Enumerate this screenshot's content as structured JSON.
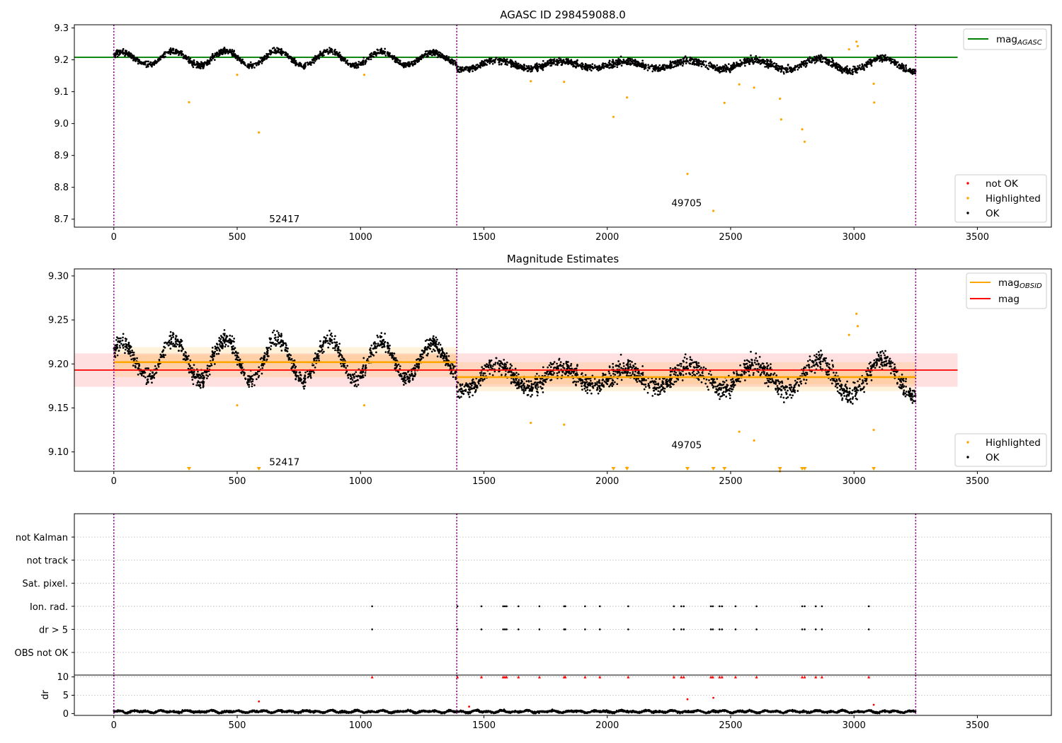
{
  "chart_data": [
    {
      "type": "scatter",
      "title": "AGASC ID 298459088.0",
      "xlabel": "",
      "ylabel": "",
      "xlim": [
        -160,
        3800
      ],
      "ylim": [
        8.675,
        9.31
      ],
      "xticks": [
        0,
        500,
        1000,
        1500,
        2000,
        2500,
        3000,
        3500
      ],
      "yticks": [
        8.7,
        8.8,
        8.9,
        9.0,
        9.1,
        9.2,
        9.3
      ],
      "ytick_labels": [
        "8.7",
        "8.8",
        "8.9",
        "9.0",
        "9.1",
        "9.2",
        "9.3"
      ],
      "obs_boundaries": [
        0,
        1390,
        3250
      ],
      "obsid_labels": [
        {
          "text": "52417",
          "x": 630,
          "y": 8.69
        },
        {
          "text": "49705",
          "x": 2260,
          "y": 8.74
        }
      ],
      "mag_agasc": 9.208,
      "legend_top": [
        {
          "label": "mag",
          "sub": "AGASC",
          "color": "#008000"
        }
      ],
      "legend_bottom": [
        {
          "label": "not OK",
          "color": "#ff0000"
        },
        {
          "label": "Highlighted",
          "color": "#ffa500"
        },
        {
          "label": "OK",
          "color": "#000000"
        }
      ],
      "ok_segments": [
        {
          "x0": 0,
          "x1": 1390,
          "mean": 9.205,
          "amp": 0.022,
          "period": 210,
          "noise": 0.009
        },
        {
          "x0": 1390,
          "x1": 3250,
          "mean": 9.185,
          "amp": 0.02,
          "period": 260,
          "noise": 0.011
        }
      ],
      "highlighted": [
        {
          "x": 305,
          "y": 9.067
        },
        {
          "x": 500,
          "y": 9.153
        },
        {
          "x": 588,
          "y": 8.972
        },
        {
          "x": 1015,
          "y": 9.153
        },
        {
          "x": 1690,
          "y": 9.133
        },
        {
          "x": 1825,
          "y": 9.131
        },
        {
          "x": 2025,
          "y": 9.021
        },
        {
          "x": 2080,
          "y": 9.082
        },
        {
          "x": 2325,
          "y": 8.842
        },
        {
          "x": 2430,
          "y": 8.726
        },
        {
          "x": 2475,
          "y": 9.065
        },
        {
          "x": 2535,
          "y": 9.123
        },
        {
          "x": 2595,
          "y": 9.113
        },
        {
          "x": 2700,
          "y": 9.078
        },
        {
          "x": 2705,
          "y": 9.013
        },
        {
          "x": 2790,
          "y": 8.982
        },
        {
          "x": 2800,
          "y": 8.943
        },
        {
          "x": 2980,
          "y": 9.233
        },
        {
          "x": 3010,
          "y": 9.257
        },
        {
          "x": 3015,
          "y": 9.243
        },
        {
          "x": 3080,
          "y": 9.125
        },
        {
          "x": 3082,
          "y": 9.066
        }
      ],
      "legend_positions": [
        "upper right",
        "lower right"
      ]
    },
    {
      "type": "scatter",
      "title": "Magnitude Estimates",
      "xlabel": "",
      "ylabel": "",
      "xlim": [
        -160,
        3800
      ],
      "ylim": [
        9.078,
        9.308
      ],
      "xticks": [
        0,
        500,
        1000,
        1500,
        2000,
        2500,
        3000,
        3500
      ],
      "yticks": [
        9.1,
        9.15,
        9.2,
        9.25,
        9.3
      ],
      "ytick_labels": [
        "9.10",
        "9.15",
        "9.20",
        "9.25",
        "9.30"
      ],
      "obs_boundaries": [
        0,
        1390,
        3250
      ],
      "obsid_labels": [
        {
          "text": "52417",
          "x": 630,
          "y": 9.085
        },
        {
          "text": "49705",
          "x": 2260,
          "y": 9.104
        }
      ],
      "mag": 9.193,
      "mag_band": [
        9.174,
        9.212
      ],
      "mag_band_xrange": [
        -160,
        3420
      ],
      "mag_obsid": [
        {
          "x0": 0,
          "x1": 1390,
          "value": 9.202,
          "band": [
            9.185,
            9.219
          ]
        },
        {
          "x0": 1390,
          "x1": 3250,
          "value": 9.185,
          "band": [
            9.169,
            9.202
          ]
        }
      ],
      "legend_top": [
        {
          "label": "mag",
          "sub": "OBSID",
          "color": "#ffa500"
        },
        {
          "label": "mag",
          "sub": "",
          "color": "#ff0000"
        }
      ],
      "legend_bottom": [
        {
          "label": "Highlighted",
          "color": "#ffa500"
        },
        {
          "label": "OK",
          "color": "#000000"
        }
      ],
      "offscale_markers_x": [
        305,
        588,
        2025,
        2080,
        2325,
        2430,
        2475,
        2700,
        2790,
        2800,
        3080
      ],
      "legend_positions": [
        "upper right",
        "lower right"
      ]
    },
    {
      "type": "scatter",
      "title": "",
      "xlabel": "",
      "ylabel": "",
      "xlim": [
        -160,
        3800
      ],
      "xticks": [
        0,
        500,
        1000,
        1500,
        2000,
        2500,
        3000,
        3500
      ],
      "flag_rows": [
        "not Kalman",
        "not track",
        "Sat. pixel.",
        "Ion. rad.",
        "dr > 5",
        "OBS not OK"
      ],
      "flagged_times": [
        1047,
        1393,
        1490,
        1578,
        1585,
        1592,
        1640,
        1725,
        1825,
        1830,
        1910,
        1970,
        2085,
        2270,
        2300,
        2310,
        2420,
        2428,
        2455,
        2465,
        2520,
        2605,
        2790,
        2800,
        2845,
        2870,
        3060
      ],
      "obs_boundaries": [
        0,
        1390,
        3250
      ]
    },
    {
      "type": "scatter",
      "title": "",
      "xlabel": "",
      "ylabel": "dr",
      "xlim": [
        -160,
        3800
      ],
      "ylim": [
        -0.5,
        10.5
      ],
      "xticks": [
        0,
        500,
        1000,
        1500,
        2000,
        2500,
        3000,
        3500
      ],
      "yticks": [
        0,
        5,
        10
      ],
      "clipped_dr_value": 10,
      "outliers": [
        {
          "x": 588,
          "y": 3.3
        },
        {
          "x": 2325,
          "y": 3.9
        },
        {
          "x": 2430,
          "y": 4.3
        },
        {
          "x": 3080,
          "y": 2.4
        },
        {
          "x": 1440,
          "y": 1.9
        }
      ],
      "obs_boundaries": [
        0,
        1390,
        3250
      ]
    }
  ]
}
